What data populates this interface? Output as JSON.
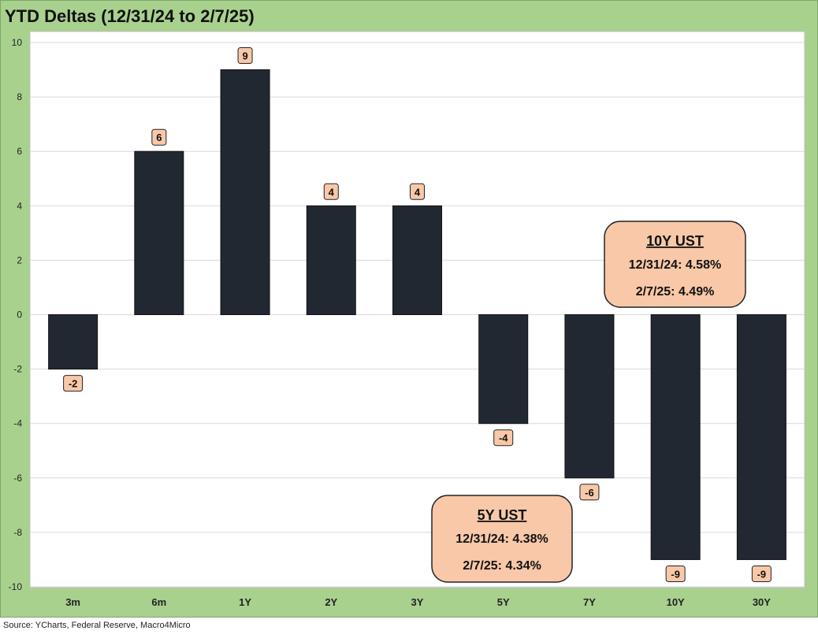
{
  "header": {
    "title": "YTD Deltas (12/31/24 to 2/7/25)"
  },
  "footer": {
    "source": "Source: YCharts, Federal Reserve, Macro4Micro"
  },
  "colors": {
    "bar": "#222831",
    "label_fill": "#f8c8a8",
    "panel": "#a9d18e",
    "grid": "#d9d9d9"
  },
  "chart_data": {
    "type": "bar",
    "categories": [
      "3m",
      "6m",
      "1Y",
      "2Y",
      "3Y",
      "5Y",
      "7Y",
      "10Y",
      "30Y"
    ],
    "values": [
      -2,
      6,
      9,
      4,
      4,
      -4,
      -6,
      -9,
      -9
    ],
    "data_labels": [
      "-2",
      "6",
      "9",
      "4",
      "4",
      "-4",
      "-6",
      "-9",
      "-9"
    ],
    "y_ticks": [
      "10",
      "8",
      "6",
      "4",
      "2",
      "0",
      "-2",
      "-4",
      "-6",
      "-8",
      "-10"
    ],
    "ylim": [
      -10,
      10
    ],
    "grid": true,
    "annotations": [
      {
        "title": "10Y UST",
        "line1": "12/31/24: 4.58%",
        "line2": "2/7/25: 4.49%"
      },
      {
        "title": "5Y UST",
        "line1": "12/31/24: 4.38%",
        "line2": "2/7/25: 4.34%"
      }
    ]
  }
}
